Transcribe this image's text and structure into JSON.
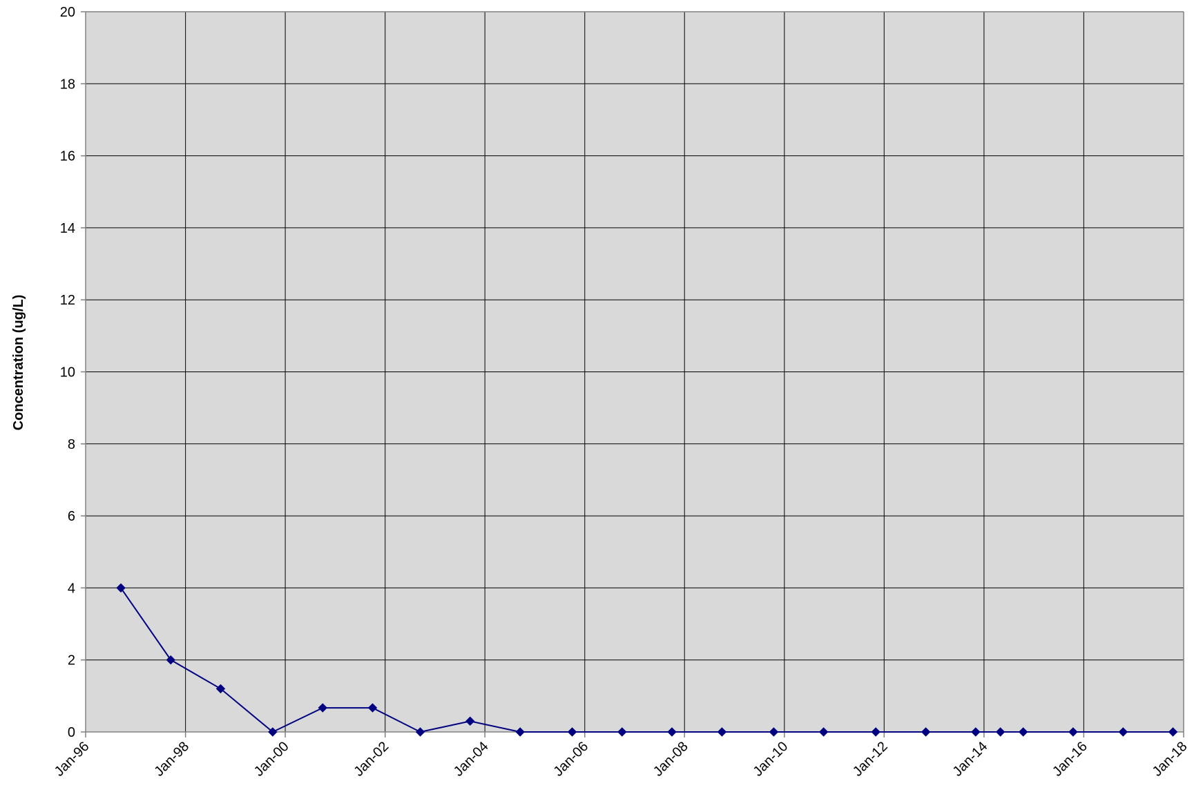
{
  "colors": {
    "plot_background": "#d9d9d9",
    "gridline": "#000000",
    "axis": "#808080",
    "series": "#000080"
  },
  "chart_data": {
    "type": "line",
    "title": "",
    "xlabel": "",
    "ylabel": "Concentration  (ug/L)",
    "x_axis": {
      "type": "date",
      "range": [
        "1996-01-01",
        "2018-01-01"
      ],
      "tick_dates": [
        "1996-01-01",
        "1998-01-01",
        "2000-01-01",
        "2002-01-01",
        "2004-01-01",
        "2006-01-01",
        "2008-01-01",
        "2010-01-01",
        "2012-01-01",
        "2014-01-01",
        "2016-01-01",
        "2018-01-01"
      ],
      "tick_labels": [
        "Jan-96",
        "Jan-98",
        "Jan-00",
        "Jan-02",
        "Jan-04",
        "Jan-06",
        "Jan-08",
        "Jan-10",
        "Jan-12",
        "Jan-14",
        "Jan-16",
        "Jan-18"
      ]
    },
    "y_axis": {
      "range": [
        0,
        20
      ],
      "ticks": [
        0,
        2,
        4,
        6,
        8,
        10,
        12,
        14,
        16,
        18,
        20
      ]
    },
    "grid": true,
    "legend": "none",
    "series": [
      {
        "marker": "diamond",
        "points": [
          {
            "x": "1996-09-15",
            "y": 4
          },
          {
            "x": "1997-09-15",
            "y": 2
          },
          {
            "x": "1998-09-15",
            "y": 1.2
          },
          {
            "x": "1999-10-01",
            "y": 0
          },
          {
            "x": "2000-10-01",
            "y": 0.67
          },
          {
            "x": "2001-10-01",
            "y": 0.67
          },
          {
            "x": "2002-09-15",
            "y": 0
          },
          {
            "x": "2003-09-15",
            "y": 0.3
          },
          {
            "x": "2004-09-15",
            "y": 0
          },
          {
            "x": "2005-10-01",
            "y": 0
          },
          {
            "x": "2006-10-01",
            "y": 0
          },
          {
            "x": "2007-10-01",
            "y": 0
          },
          {
            "x": "2008-10-01",
            "y": 0
          },
          {
            "x": "2009-10-15",
            "y": 0
          },
          {
            "x": "2010-10-15",
            "y": 0
          },
          {
            "x": "2011-11-01",
            "y": 0
          },
          {
            "x": "2012-11-01",
            "y": 0
          },
          {
            "x": "2013-11-01",
            "y": 0
          },
          {
            "x": "2014-05-01",
            "y": 0
          },
          {
            "x": "2014-10-15",
            "y": 0
          },
          {
            "x": "2015-10-15",
            "y": 0
          },
          {
            "x": "2016-10-15",
            "y": 0
          },
          {
            "x": "2017-10-15",
            "y": 0
          }
        ]
      }
    ]
  }
}
